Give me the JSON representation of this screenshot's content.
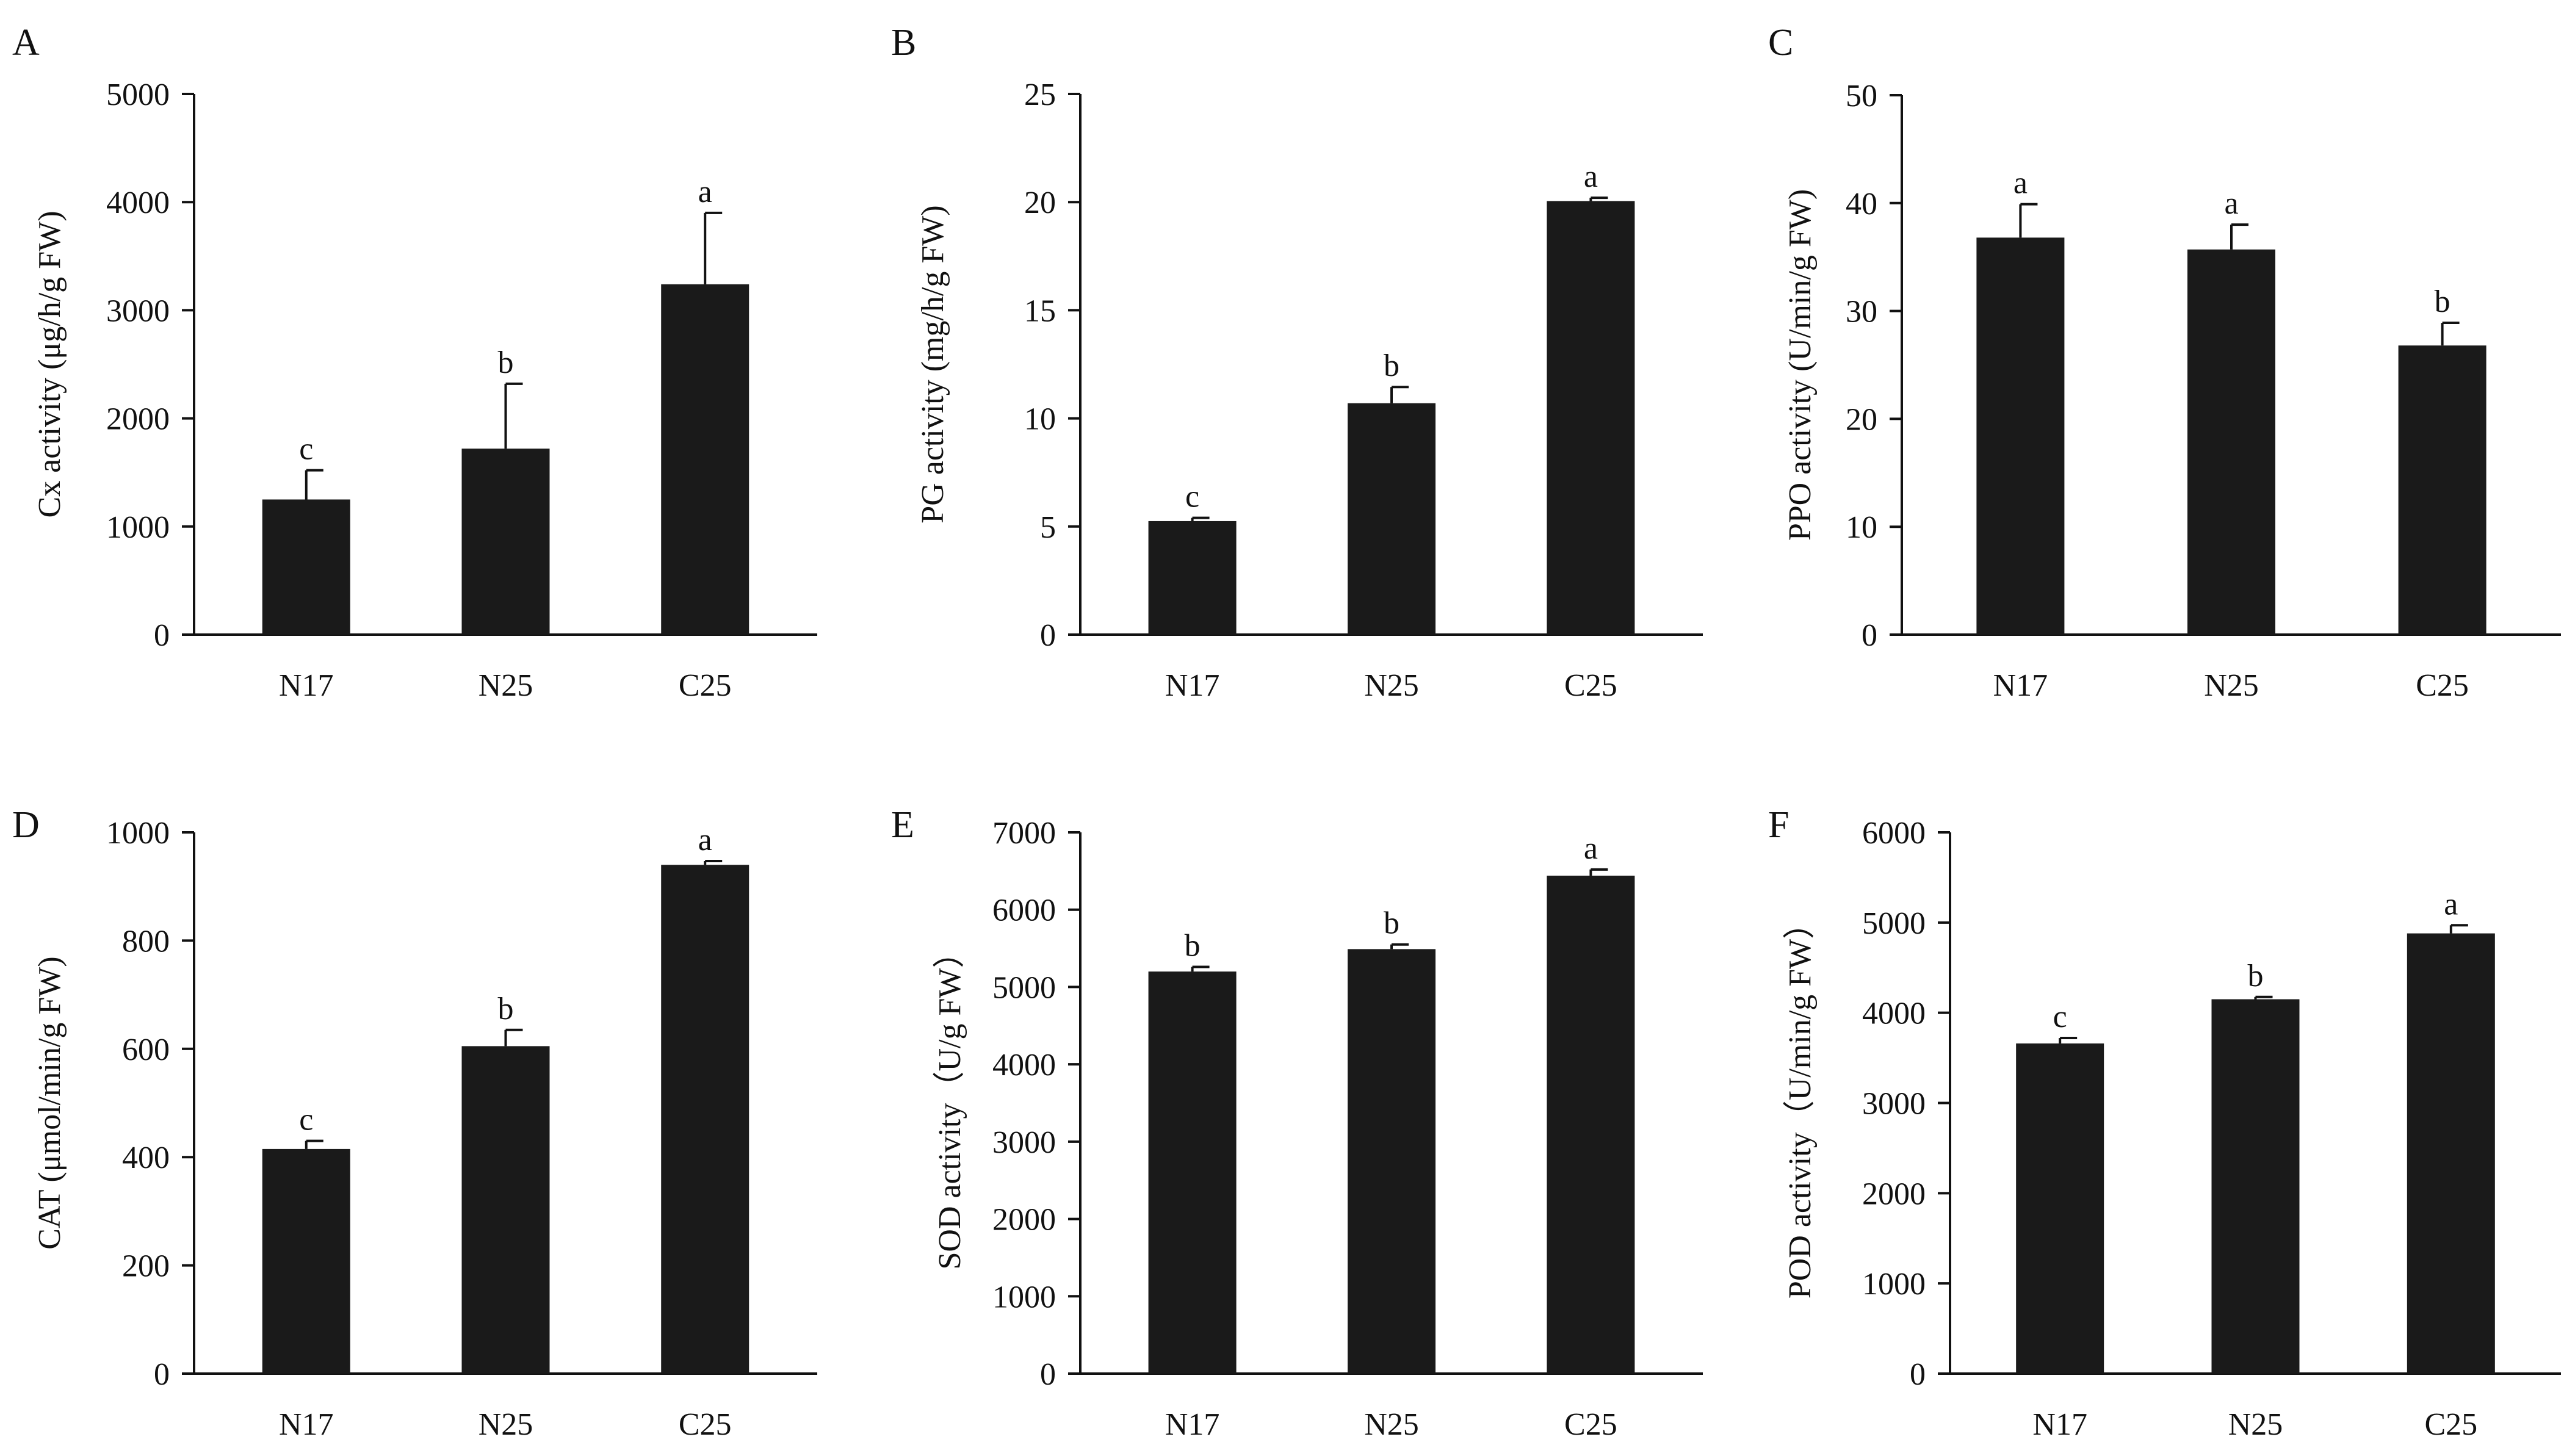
{
  "colors": {
    "bar": "#1a1a1a",
    "axis": "#111111",
    "background": "#ffffff"
  },
  "chart_data": [
    {
      "panel": "A",
      "type": "bar",
      "categories": [
        "N17",
        "N25",
        "C25"
      ],
      "values": [
        1250,
        1720,
        3240
      ],
      "errors": [
        270,
        600,
        660
      ],
      "significance": [
        "c",
        "b",
        "a"
      ],
      "ylabel": "Cx activity (μg/h/g FW)",
      "ylim": [
        0,
        5000
      ],
      "yticks": [
        0,
        1000,
        2000,
        3000,
        4000,
        5000
      ],
      "ytick_labels": [
        "0",
        "1000",
        "2000",
        "3000",
        "4000",
        "5000"
      ]
    },
    {
      "panel": "B",
      "type": "bar",
      "categories": [
        "N17",
        "N25",
        "C25"
      ],
      "values": [
        5.25,
        10.7,
        20.05
      ],
      "errors": [
        0.15,
        0.75,
        0.15
      ],
      "significance": [
        "c",
        "b",
        "a"
      ],
      "ylabel": "PG activity (mg/h/g FW)",
      "ylim": [
        0,
        25
      ],
      "yticks": [
        0,
        5,
        10,
        15,
        20,
        25
      ],
      "ytick_labels": [
        "0",
        "5",
        "10",
        "15",
        "20",
        "25"
      ]
    },
    {
      "panel": "C",
      "type": "bar",
      "categories": [
        "N17",
        "N25",
        "C25"
      ],
      "values": [
        36.8,
        35.7,
        26.8
      ],
      "errors": [
        3.1,
        2.3,
        2.1
      ],
      "significance": [
        "a",
        "a",
        "b"
      ],
      "ylabel": "PPO activity (U/min/g FW)",
      "ylim": [
        0,
        50
      ],
      "yticks": [
        0,
        10,
        20,
        30,
        40,
        50
      ],
      "ytick_labels": [
        "0",
        "10",
        "20",
        "30",
        "40",
        "50"
      ]
    },
    {
      "panel": "D",
      "type": "bar",
      "categories": [
        "N17",
        "N25",
        "C25"
      ],
      "values": [
        415,
        605,
        940
      ],
      "errors": [
        15,
        30,
        7
      ],
      "significance": [
        "c",
        "b",
        "a"
      ],
      "ylabel": "CAT (μmol/min/g FW)",
      "ylim": [
        0,
        1000
      ],
      "yticks": [
        0,
        200,
        400,
        600,
        800,
        1000
      ],
      "ytick_labels": [
        "0",
        "200",
        "400",
        "600",
        "800",
        "1000"
      ]
    },
    {
      "panel": "E",
      "type": "bar",
      "categories": [
        "N17",
        "N25",
        "C25"
      ],
      "values": [
        5200,
        5490,
        6440
      ],
      "errors": [
        60,
        60,
        80
      ],
      "significance": [
        "b",
        "b",
        "a"
      ],
      "ylabel": "SOD activity（U/g FW）",
      "ylim": [
        0,
        7000
      ],
      "yticks": [
        0,
        1000,
        2000,
        3000,
        4000,
        5000,
        6000,
        7000
      ],
      "ytick_labels": [
        "0",
        "1000",
        "2000",
        "3000",
        "4000",
        "5000",
        "6000",
        "7000"
      ]
    },
    {
      "panel": "F",
      "type": "bar",
      "categories": [
        "N17",
        "N25",
        "C25"
      ],
      "values": [
        3660,
        4150,
        4880
      ],
      "errors": [
        60,
        25,
        90
      ],
      "significance": [
        "c",
        "b",
        "a"
      ],
      "ylabel": "POD activity（U/min/g FW）",
      "ylim": [
        0,
        6000
      ],
      "yticks": [
        0,
        1000,
        2000,
        3000,
        4000,
        5000,
        6000
      ],
      "ytick_labels": [
        "0",
        "1000",
        "2000",
        "3000",
        "4000",
        "5000",
        "6000"
      ]
    }
  ]
}
